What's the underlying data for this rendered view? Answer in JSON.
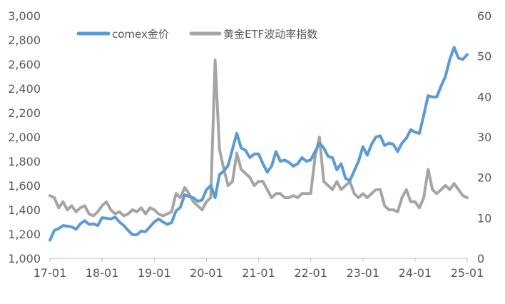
{
  "chart_data": {
    "type": "line",
    "x_ticks": [
      "17-01",
      "18-01",
      "19-01",
      "20-01",
      "21-01",
      "22-01",
      "23-01",
      "24-01",
      "25-01"
    ],
    "y_left": {
      "ticks": [
        "1,000",
        "1,200",
        "1,400",
        "1,600",
        "1,800",
        "2,000",
        "2,200",
        "2,400",
        "2,600",
        "2,800",
        "3,000"
      ],
      "range": [
        1000,
        3000
      ]
    },
    "y_right": {
      "ticks": [
        "0",
        "10",
        "20",
        "30",
        "40",
        "50",
        "60"
      ],
      "range": [
        0,
        60
      ]
    },
    "x_range": [
      "2017-01",
      "2025-01"
    ],
    "legend": {
      "placement": "top-left"
    },
    "grid": false,
    "series": [
      {
        "name": "comex金价",
        "axis": "left",
        "color": "#5b9bd5",
        "points": [
          [
            "2017-01",
            1150
          ],
          [
            "2017-02",
            1230
          ],
          [
            "2017-03",
            1245
          ],
          [
            "2017-04",
            1270
          ],
          [
            "2017-05",
            1265
          ],
          [
            "2017-06",
            1260
          ],
          [
            "2017-07",
            1240
          ],
          [
            "2017-08",
            1285
          ],
          [
            "2017-09",
            1310
          ],
          [
            "2017-10",
            1280
          ],
          [
            "2017-11",
            1285
          ],
          [
            "2017-12",
            1270
          ],
          [
            "2018-01",
            1335
          ],
          [
            "2018-02",
            1330
          ],
          [
            "2018-03",
            1325
          ],
          [
            "2018-04",
            1340
          ],
          [
            "2018-05",
            1300
          ],
          [
            "2018-06",
            1270
          ],
          [
            "2018-07",
            1230
          ],
          [
            "2018-08",
            1195
          ],
          [
            "2018-09",
            1195
          ],
          [
            "2018-10",
            1225
          ],
          [
            "2018-11",
            1220
          ],
          [
            "2018-12",
            1260
          ],
          [
            "2019-01",
            1300
          ],
          [
            "2019-02",
            1325
          ],
          [
            "2019-03",
            1300
          ],
          [
            "2019-04",
            1280
          ],
          [
            "2019-05",
            1295
          ],
          [
            "2019-06",
            1390
          ],
          [
            "2019-07",
            1420
          ],
          [
            "2019-08",
            1525
          ],
          [
            "2019-09",
            1510
          ],
          [
            "2019-10",
            1500
          ],
          [
            "2019-11",
            1470
          ],
          [
            "2019-12",
            1480
          ],
          [
            "2020-01",
            1565
          ],
          [
            "2020-02",
            1600
          ],
          [
            "2020-03",
            1500
          ],
          [
            "2020-04",
            1690
          ],
          [
            "2020-05",
            1720
          ],
          [
            "2020-06",
            1765
          ],
          [
            "2020-07",
            1900
          ],
          [
            "2020-08",
            2030
          ],
          [
            "2020-09",
            1910
          ],
          [
            "2020-10",
            1890
          ],
          [
            "2020-11",
            1830
          ],
          [
            "2020-12",
            1860
          ],
          [
            "2021-01",
            1860
          ],
          [
            "2021-02",
            1780
          ],
          [
            "2021-03",
            1710
          ],
          [
            "2021-04",
            1760
          ],
          [
            "2021-05",
            1880
          ],
          [
            "2021-06",
            1800
          ],
          [
            "2021-07",
            1810
          ],
          [
            "2021-08",
            1790
          ],
          [
            "2021-09",
            1760
          ],
          [
            "2021-10",
            1780
          ],
          [
            "2021-11",
            1830
          ],
          [
            "2021-12",
            1800
          ],
          [
            "2022-01",
            1810
          ],
          [
            "2022-02",
            1880
          ],
          [
            "2022-03",
            1950
          ],
          [
            "2022-04",
            1910
          ],
          [
            "2022-05",
            1840
          ],
          [
            "2022-06",
            1830
          ],
          [
            "2022-07",
            1730
          ],
          [
            "2022-08",
            1780
          ],
          [
            "2022-09",
            1660
          ],
          [
            "2022-10",
            1640
          ],
          [
            "2022-11",
            1720
          ],
          [
            "2022-12",
            1800
          ],
          [
            "2023-01",
            1920
          ],
          [
            "2023-02",
            1850
          ],
          [
            "2023-03",
            1940
          ],
          [
            "2023-04",
            2000
          ],
          [
            "2023-05",
            2010
          ],
          [
            "2023-06",
            1930
          ],
          [
            "2023-07",
            1950
          ],
          [
            "2023-08",
            1940
          ],
          [
            "2023-09",
            1880
          ],
          [
            "2023-10",
            1950
          ],
          [
            "2023-11",
            1990
          ],
          [
            "2023-12",
            2060
          ],
          [
            "2024-01",
            2040
          ],
          [
            "2024-02",
            2030
          ],
          [
            "2024-03",
            2180
          ],
          [
            "2024-04",
            2340
          ],
          [
            "2024-05",
            2330
          ],
          [
            "2024-06",
            2330
          ],
          [
            "2024-07",
            2420
          ],
          [
            "2024-08",
            2500
          ],
          [
            "2024-09",
            2640
          ],
          [
            "2024-10",
            2740
          ],
          [
            "2024-11",
            2650
          ],
          [
            "2024-12",
            2640
          ],
          [
            "2025-01",
            2680
          ]
        ]
      },
      {
        "name": "黄金ETF波动率指数",
        "axis": "right",
        "color": "#a5a5a5",
        "points": [
          [
            "2017-01",
            15.5
          ],
          [
            "2017-02",
            15
          ],
          [
            "2017-03",
            12.5
          ],
          [
            "2017-04",
            14
          ],
          [
            "2017-05",
            12
          ],
          [
            "2017-06",
            13
          ],
          [
            "2017-07",
            11.5
          ],
          [
            "2017-08",
            12.5
          ],
          [
            "2017-09",
            13
          ],
          [
            "2017-10",
            11
          ],
          [
            "2017-11",
            10.5
          ],
          [
            "2017-12",
            11.5
          ],
          [
            "2018-01",
            13
          ],
          [
            "2018-02",
            14
          ],
          [
            "2018-03",
            12
          ],
          [
            "2018-04",
            11
          ],
          [
            "2018-05",
            11.5
          ],
          [
            "2018-06",
            10.5
          ],
          [
            "2018-07",
            11
          ],
          [
            "2018-08",
            12
          ],
          [
            "2018-09",
            11.5
          ],
          [
            "2018-10",
            12.5
          ],
          [
            "2018-11",
            11
          ],
          [
            "2018-12",
            12.5
          ],
          [
            "2019-01",
            12
          ],
          [
            "2019-02",
            11
          ],
          [
            "2019-03",
            10.5
          ],
          [
            "2019-04",
            11
          ],
          [
            "2019-05",
            11.5
          ],
          [
            "2019-06",
            16
          ],
          [
            "2019-07",
            15
          ],
          [
            "2019-08",
            17.5
          ],
          [
            "2019-09",
            16
          ],
          [
            "2019-10",
            14
          ],
          [
            "2019-11",
            13
          ],
          [
            "2019-12",
            12
          ],
          [
            "2020-01",
            14
          ],
          [
            "2020-02",
            15
          ],
          [
            "2020-03",
            49
          ],
          [
            "2020-04",
            27
          ],
          [
            "2020-05",
            22
          ],
          [
            "2020-06",
            18
          ],
          [
            "2020-07",
            19
          ],
          [
            "2020-08",
            26
          ],
          [
            "2020-09",
            22
          ],
          [
            "2020-10",
            21
          ],
          [
            "2020-11",
            20
          ],
          [
            "2020-12",
            18
          ],
          [
            "2021-01",
            19
          ],
          [
            "2021-02",
            19
          ],
          [
            "2021-03",
            17
          ],
          [
            "2021-04",
            15
          ],
          [
            "2021-05",
            16
          ],
          [
            "2021-06",
            16
          ],
          [
            "2021-07",
            15
          ],
          [
            "2021-08",
            15
          ],
          [
            "2021-09",
            15.5
          ],
          [
            "2021-10",
            15
          ],
          [
            "2021-11",
            16
          ],
          [
            "2021-12",
            16
          ],
          [
            "2022-01",
            16
          ],
          [
            "2022-02",
            25
          ],
          [
            "2022-03",
            30
          ],
          [
            "2022-04",
            19
          ],
          [
            "2022-05",
            18
          ],
          [
            "2022-06",
            17
          ],
          [
            "2022-07",
            19
          ],
          [
            "2022-08",
            17
          ],
          [
            "2022-09",
            18
          ],
          [
            "2022-10",
            19
          ],
          [
            "2022-11",
            16
          ],
          [
            "2022-12",
            15
          ],
          [
            "2023-01",
            16
          ],
          [
            "2023-02",
            15
          ],
          [
            "2023-03",
            16
          ],
          [
            "2023-04",
            17
          ],
          [
            "2023-05",
            17
          ],
          [
            "2023-06",
            13
          ],
          [
            "2023-07",
            12
          ],
          [
            "2023-08",
            12
          ],
          [
            "2023-09",
            11.5
          ],
          [
            "2023-10",
            15
          ],
          [
            "2023-11",
            17
          ],
          [
            "2023-12",
            14
          ],
          [
            "2024-01",
            14
          ],
          [
            "2024-02",
            12.5
          ],
          [
            "2024-03",
            15
          ],
          [
            "2024-04",
            22
          ],
          [
            "2024-05",
            17
          ],
          [
            "2024-06",
            16
          ],
          [
            "2024-07",
            17
          ],
          [
            "2024-08",
            18
          ],
          [
            "2024-09",
            17
          ],
          [
            "2024-10",
            18.5
          ],
          [
            "2024-11",
            17
          ],
          [
            "2024-12",
            15.5
          ],
          [
            "2025-01",
            15
          ]
        ]
      }
    ]
  }
}
